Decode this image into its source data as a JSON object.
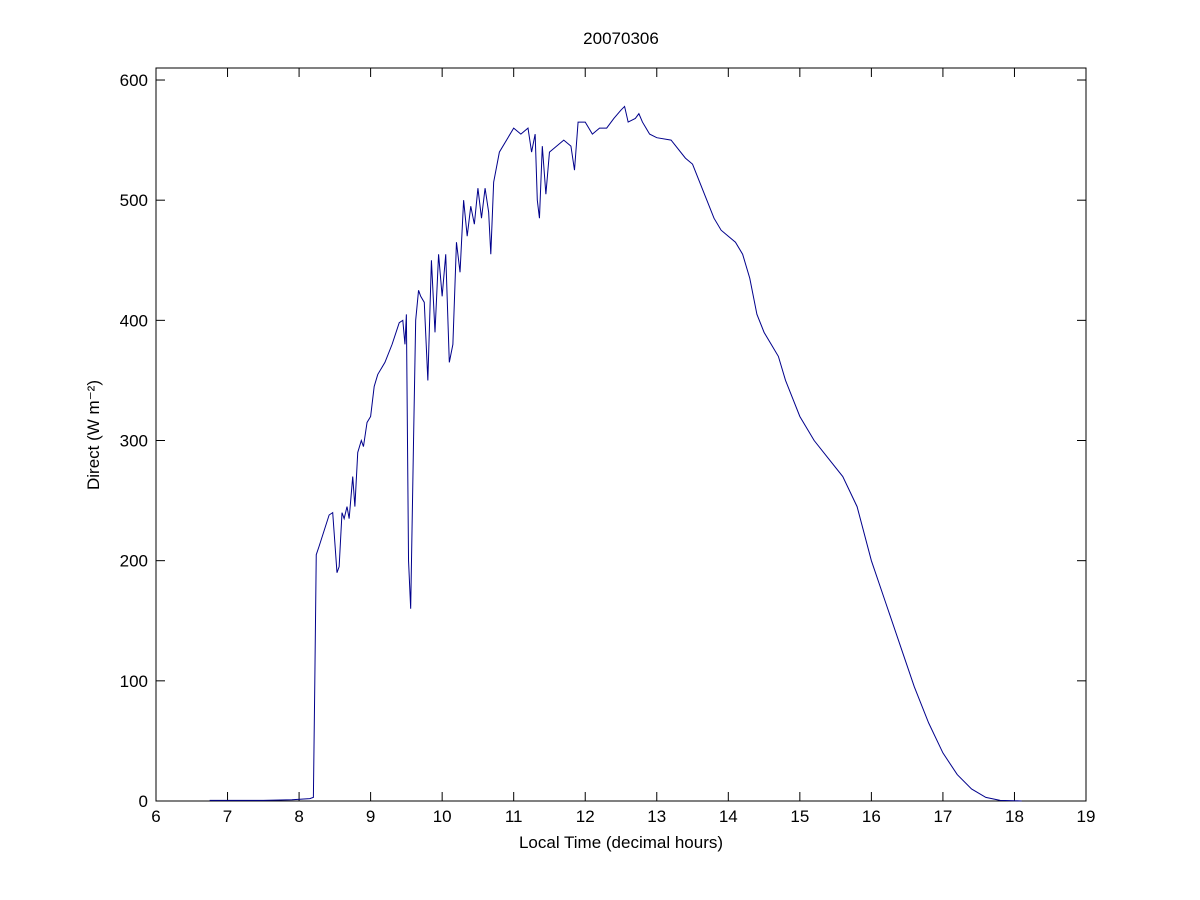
{
  "chart_data": {
    "type": "line",
    "title": "20070306",
    "xlabel": "Local Time (decimal hours)",
    "ylabel": "Direct (W m⁻²)",
    "xlim": [
      6,
      19
    ],
    "xticks": [
      6,
      7,
      8,
      9,
      10,
      11,
      12,
      13,
      14,
      15,
      16,
      17,
      18,
      19
    ],
    "ylim": [
      0,
      610
    ],
    "yticks": [
      0,
      100,
      200,
      300,
      400,
      500,
      600
    ],
    "grid": false,
    "series": [
      {
        "color": "#00008b",
        "x": [
          6.75,
          7.0,
          7.5,
          7.9,
          8.15,
          8.2,
          8.22,
          8.24,
          8.28,
          8.35,
          8.42,
          8.47,
          8.5,
          8.53,
          8.56,
          8.6,
          8.63,
          8.67,
          8.7,
          8.75,
          8.78,
          8.82,
          8.87,
          8.9,
          8.95,
          9.0,
          9.05,
          9.1,
          9.2,
          9.3,
          9.4,
          9.45,
          9.48,
          9.5,
          9.53,
          9.56,
          9.6,
          9.63,
          9.67,
          9.7,
          9.75,
          9.8,
          9.85,
          9.9,
          9.95,
          10.0,
          10.05,
          10.1,
          10.15,
          10.2,
          10.25,
          10.3,
          10.35,
          10.4,
          10.45,
          10.5,
          10.55,
          10.6,
          10.65,
          10.68,
          10.72,
          10.8,
          10.9,
          11.0,
          11.1,
          11.2,
          11.25,
          11.3,
          11.33,
          11.36,
          11.4,
          11.45,
          11.5,
          11.6,
          11.7,
          11.8,
          11.85,
          11.9,
          12.0,
          12.1,
          12.2,
          12.3,
          12.4,
          12.5,
          12.55,
          12.6,
          12.7,
          12.75,
          12.8,
          12.9,
          13.0,
          13.2,
          13.4,
          13.5,
          13.6,
          13.7,
          13.8,
          13.9,
          14.0,
          14.1,
          14.2,
          14.3,
          14.4,
          14.5,
          14.6,
          14.7,
          14.8,
          14.9,
          15.0,
          15.2,
          15.4,
          15.6,
          15.8,
          16.0,
          16.2,
          16.4,
          16.6,
          16.8,
          17.0,
          17.2,
          17.4,
          17.6,
          17.8,
          18.0,
          18.1
        ],
        "values": [
          0.5,
          0.5,
          0.5,
          1,
          2,
          3,
          100,
          205,
          212,
          225,
          238,
          240,
          215,
          190,
          195,
          240,
          235,
          245,
          235,
          270,
          245,
          290,
          300,
          295,
          315,
          320,
          345,
          355,
          365,
          380,
          398,
          400,
          380,
          405,
          200,
          160,
          300,
          400,
          425,
          420,
          415,
          350,
          450,
          390,
          455,
          420,
          455,
          365,
          380,
          465,
          440,
          500,
          470,
          495,
          480,
          510,
          485,
          510,
          490,
          455,
          515,
          540,
          550,
          560,
          555,
          560,
          540,
          555,
          500,
          485,
          545,
          505,
          540,
          545,
          550,
          545,
          525,
          565,
          565,
          555,
          560,
          560,
          568,
          575,
          578,
          565,
          568,
          572,
          565,
          555,
          552,
          550,
          535,
          530,
          515,
          500,
          485,
          475,
          470,
          465,
          455,
          435,
          405,
          390,
          380,
          370,
          350,
          335,
          320,
          300,
          285,
          270,
          245,
          200,
          165,
          130,
          95,
          65,
          40,
          22,
          10,
          3,
          0.5,
          0.2,
          0
        ]
      }
    ]
  }
}
